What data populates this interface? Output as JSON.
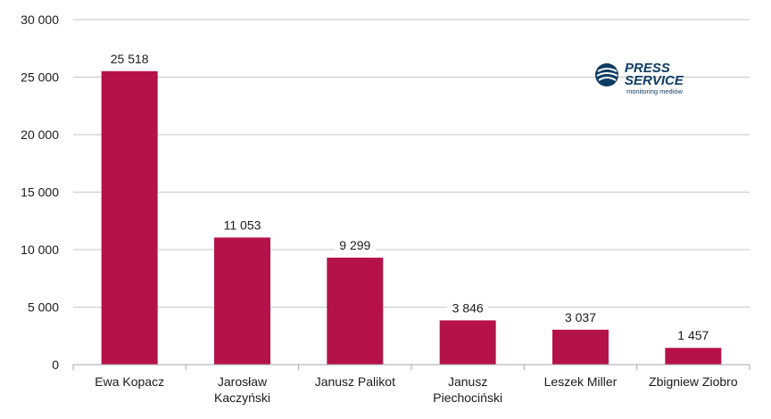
{
  "chart_data": {
    "type": "bar",
    "categories": [
      [
        "Ewa Kopacz"
      ],
      [
        "Jarosław",
        "Kaczyński"
      ],
      [
        "Janusz Palikot"
      ],
      [
        "Janusz",
        "Piechociński"
      ],
      [
        "Leszek Miller"
      ],
      [
        "Zbigniew Ziobro"
      ]
    ],
    "values": [
      25518,
      11053,
      9299,
      3846,
      3037,
      1457
    ],
    "value_labels": [
      "25 518",
      "11 053",
      "9 299",
      "3 846",
      "3 037",
      "1 457"
    ],
    "ylim": [
      0,
      30000
    ],
    "y_ticks": [
      0,
      5000,
      10000,
      15000,
      20000,
      25000,
      30000
    ],
    "y_tick_labels": [
      "0",
      "5 000",
      "10 000",
      "15 000",
      "20 000",
      "25 000",
      "30 000"
    ],
    "grid": true,
    "bar_color": "#b5124a",
    "grid_color": "#c6c6c6"
  },
  "logo": {
    "line1": "PRESS",
    "line2": "SERVICE",
    "tagline": "monitoring mediów",
    "color": "#0d3c63"
  }
}
